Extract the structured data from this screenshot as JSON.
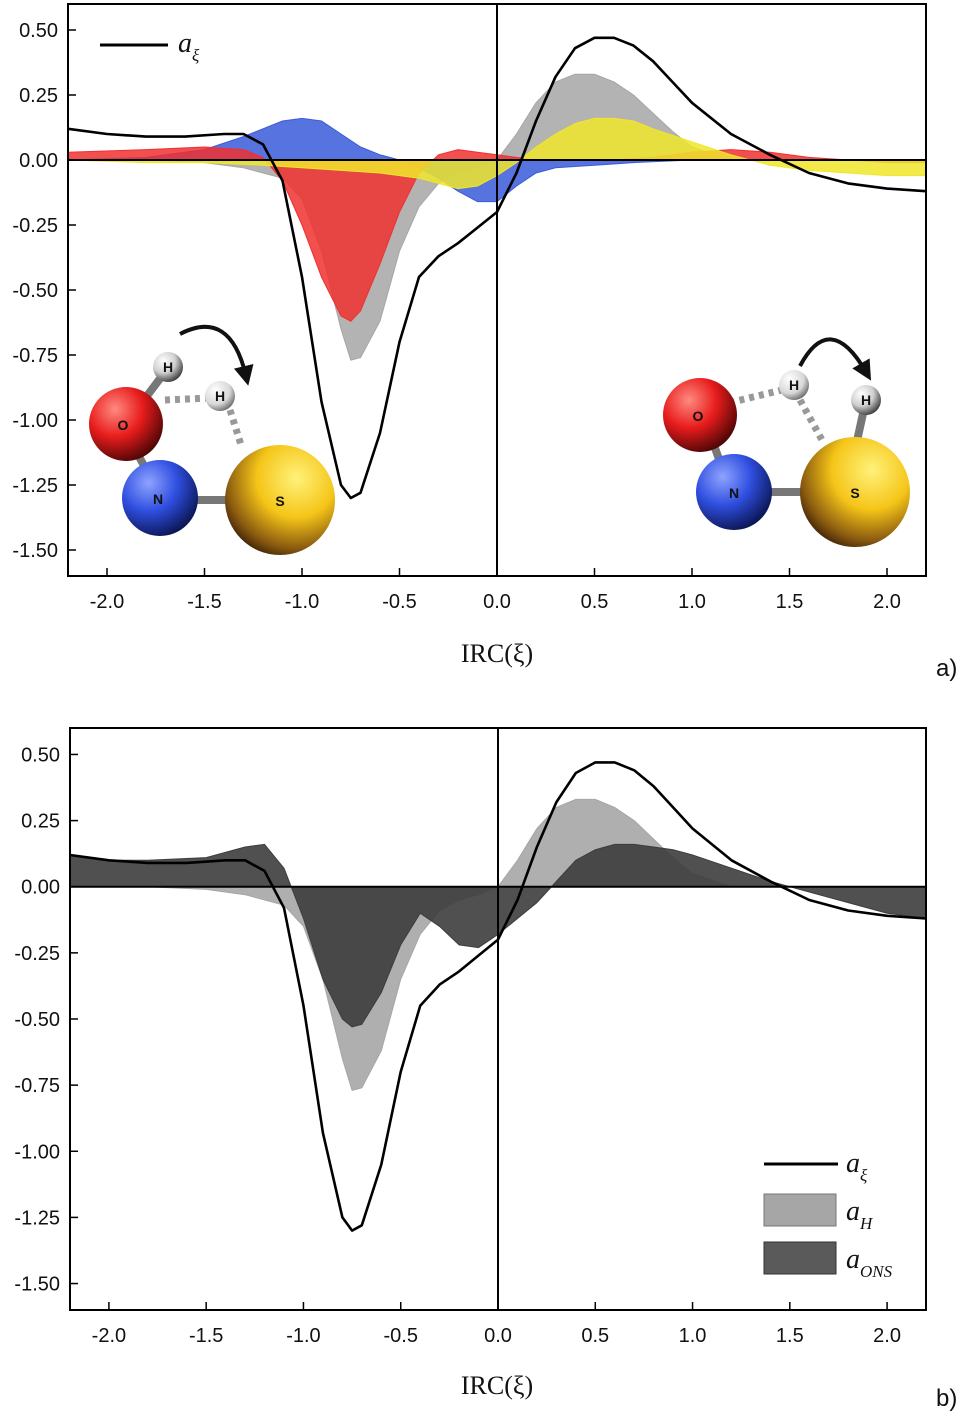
{
  "chart_data": [
    {
      "type": "area",
      "panel_label": "a)",
      "xlabel": "IRC(ξ)",
      "ylabel": "",
      "xlim": [
        -2.2,
        2.2
      ],
      "ylim": [
        -1.6,
        0.6
      ],
      "xticks": [
        "-2.0",
        "-1.5",
        "-1.0",
        "-0.5",
        "0.0",
        "0.5",
        "1.0",
        "1.5",
        "2.0"
      ],
      "yticks": [
        "0.50",
        "0.25",
        "0.00",
        "-0.25",
        "-0.50",
        "-0.75",
        "-1.00",
        "-1.25",
        "-1.50"
      ],
      "grid": false,
      "legend_position": "top-left",
      "series": [
        {
          "name": "a",
          "name_sub": "ξ",
          "kind": "line",
          "color": "#000000",
          "x": [
            -2.2,
            -2.0,
            -1.8,
            -1.6,
            -1.4,
            -1.3,
            -1.2,
            -1.1,
            -1.0,
            -0.9,
            -0.8,
            -0.75,
            -0.7,
            -0.6,
            -0.5,
            -0.4,
            -0.3,
            -0.2,
            -0.1,
            0.0,
            0.1,
            0.2,
            0.3,
            0.4,
            0.5,
            0.6,
            0.7,
            0.8,
            0.9,
            1.0,
            1.2,
            1.4,
            1.6,
            1.8,
            2.0,
            2.2
          ],
          "y": [
            0.12,
            0.1,
            0.09,
            0.09,
            0.1,
            0.1,
            0.06,
            -0.08,
            -0.45,
            -0.93,
            -1.25,
            -1.3,
            -1.28,
            -1.05,
            -0.7,
            -0.45,
            -0.37,
            -0.32,
            -0.26,
            -0.2,
            -0.05,
            0.15,
            0.32,
            0.43,
            0.47,
            0.47,
            0.44,
            0.38,
            0.3,
            0.22,
            0.1,
            0.02,
            -0.05,
            -0.09,
            -0.11,
            -0.12
          ]
        },
        {
          "name": "",
          "kind": "area",
          "color": "#a6a6a6",
          "x": [
            -2.2,
            -1.8,
            -1.5,
            -1.3,
            -1.1,
            -1.0,
            -0.9,
            -0.8,
            -0.75,
            -0.7,
            -0.6,
            -0.5,
            -0.4,
            -0.3,
            -0.2,
            -0.1,
            0.0,
            0.1,
            0.2,
            0.3,
            0.4,
            0.5,
            0.6,
            0.7,
            0.8,
            0.9,
            1.0,
            1.2,
            1.4,
            1.6,
            1.8,
            2.0,
            2.2
          ],
          "y": [
            0.0,
            0.0,
            -0.01,
            -0.03,
            -0.07,
            -0.15,
            -0.35,
            -0.65,
            -0.77,
            -0.76,
            -0.62,
            -0.35,
            -0.18,
            -0.09,
            -0.05,
            -0.03,
            0.0,
            0.1,
            0.22,
            0.3,
            0.33,
            0.33,
            0.3,
            0.25,
            0.18,
            0.11,
            0.05,
            0.0,
            0.0,
            0.0,
            0.0,
            0.0,
            0.0
          ]
        },
        {
          "name": "",
          "kind": "area",
          "color": "#3a5bd9",
          "x": [
            -2.2,
            -1.8,
            -1.5,
            -1.3,
            -1.2,
            -1.1,
            -1.0,
            -0.9,
            -0.8,
            -0.7,
            -0.6,
            -0.5,
            -0.4,
            -0.3,
            -0.2,
            -0.1,
            0.0,
            0.1,
            0.2,
            0.3,
            0.5,
            0.7,
            1.0,
            1.3,
            1.6,
            2.2
          ],
          "y": [
            0.0,
            0.01,
            0.04,
            0.09,
            0.12,
            0.15,
            0.16,
            0.15,
            0.1,
            0.05,
            0.02,
            0.0,
            -0.03,
            -0.07,
            -0.12,
            -0.16,
            -0.16,
            -0.1,
            -0.05,
            -0.03,
            -0.02,
            -0.01,
            0.0,
            0.0,
            0.0,
            0.0
          ]
        },
        {
          "name": "",
          "kind": "area",
          "color": "#f03030",
          "x": [
            -2.2,
            -1.8,
            -1.5,
            -1.3,
            -1.2,
            -1.1,
            -1.0,
            -0.9,
            -0.8,
            -0.75,
            -0.7,
            -0.6,
            -0.5,
            -0.4,
            -0.3,
            -0.2,
            -0.1,
            0.0,
            0.1,
            0.2,
            0.4,
            0.6,
            0.8,
            1.0,
            1.2,
            1.4,
            1.6,
            1.8,
            2.0,
            2.2
          ],
          "y": [
            0.03,
            0.04,
            0.05,
            0.04,
            0.01,
            -0.08,
            -0.25,
            -0.45,
            -0.6,
            -0.62,
            -0.58,
            -0.4,
            -0.2,
            -0.05,
            0.02,
            0.04,
            0.03,
            0.02,
            0.01,
            0.0,
            0.0,
            0.0,
            0.01,
            0.03,
            0.04,
            0.03,
            0.01,
            0.0,
            -0.01,
            -0.01
          ]
        },
        {
          "name": "",
          "kind": "area",
          "color": "#f0e62a",
          "x": [
            -2.2,
            -1.8,
            -1.5,
            -1.2,
            -1.0,
            -0.8,
            -0.6,
            -0.4,
            -0.3,
            -0.2,
            -0.1,
            0.0,
            0.1,
            0.2,
            0.3,
            0.4,
            0.5,
            0.6,
            0.7,
            0.8,
            1.0,
            1.2,
            1.4,
            1.6,
            1.8,
            2.0,
            2.2
          ],
          "y": [
            0.0,
            -0.01,
            -0.01,
            -0.02,
            -0.03,
            -0.04,
            -0.05,
            -0.07,
            -0.09,
            -0.11,
            -0.1,
            -0.06,
            -0.01,
            0.05,
            0.1,
            0.14,
            0.16,
            0.16,
            0.15,
            0.12,
            0.07,
            0.02,
            -0.02,
            -0.04,
            -0.05,
            -0.06,
            -0.06
          ]
        }
      ]
    },
    {
      "type": "area",
      "panel_label": "b)",
      "xlabel": "IRC(ξ)",
      "ylabel": "",
      "xlim": [
        -2.2,
        2.2
      ],
      "ylim": [
        -1.6,
        0.6
      ],
      "xticks": [
        "-2.0",
        "-1.5",
        "-1.0",
        "-0.5",
        "0.0",
        "0.5",
        "1.0",
        "1.5",
        "2.0"
      ],
      "yticks": [
        "0.50",
        "0.25",
        "0.00",
        "-0.25",
        "-0.50",
        "-0.75",
        "-1.00",
        "-1.25",
        "-1.50"
      ],
      "grid": false,
      "legend_position": "bottom-right",
      "series": [
        {
          "name": "a",
          "name_sub": "ξ",
          "kind": "line",
          "color": "#000000",
          "x": [
            -2.2,
            -2.0,
            -1.8,
            -1.6,
            -1.4,
            -1.3,
            -1.2,
            -1.1,
            -1.0,
            -0.9,
            -0.8,
            -0.75,
            -0.7,
            -0.6,
            -0.5,
            -0.4,
            -0.3,
            -0.2,
            -0.1,
            0.0,
            0.1,
            0.2,
            0.3,
            0.4,
            0.5,
            0.6,
            0.7,
            0.8,
            0.9,
            1.0,
            1.2,
            1.4,
            1.6,
            1.8,
            2.0,
            2.2
          ],
          "y": [
            0.12,
            0.1,
            0.09,
            0.09,
            0.1,
            0.1,
            0.06,
            -0.08,
            -0.45,
            -0.93,
            -1.25,
            -1.3,
            -1.28,
            -1.05,
            -0.7,
            -0.45,
            -0.37,
            -0.32,
            -0.26,
            -0.2,
            -0.05,
            0.15,
            0.32,
            0.43,
            0.47,
            0.47,
            0.44,
            0.38,
            0.3,
            0.22,
            0.1,
            0.02,
            -0.05,
            -0.09,
            -0.11,
            -0.12
          ]
        },
        {
          "name": "a",
          "name_sub": "H",
          "kind": "area",
          "color": "#a6a6a6",
          "x": [
            -2.2,
            -1.8,
            -1.5,
            -1.3,
            -1.1,
            -1.0,
            -0.9,
            -0.8,
            -0.75,
            -0.7,
            -0.6,
            -0.5,
            -0.4,
            -0.3,
            -0.2,
            -0.1,
            0.0,
            0.1,
            0.2,
            0.3,
            0.4,
            0.5,
            0.6,
            0.7,
            0.8,
            0.9,
            1.0,
            1.2,
            1.4,
            1.6,
            1.8,
            2.0,
            2.2
          ],
          "y": [
            0.0,
            0.0,
            -0.01,
            -0.03,
            -0.07,
            -0.15,
            -0.35,
            -0.65,
            -0.77,
            -0.76,
            -0.62,
            -0.35,
            -0.18,
            -0.09,
            -0.05,
            -0.03,
            0.0,
            0.1,
            0.22,
            0.3,
            0.33,
            0.33,
            0.3,
            0.25,
            0.18,
            0.11,
            0.05,
            0.0,
            0.0,
            0.0,
            0.0,
            0.0,
            0.0
          ]
        },
        {
          "name": "a",
          "name_sub": "ONS",
          "kind": "area",
          "color": "#3d3d3d",
          "x": [
            -2.2,
            -2.0,
            -1.8,
            -1.5,
            -1.3,
            -1.2,
            -1.1,
            -1.0,
            -0.9,
            -0.8,
            -0.75,
            -0.7,
            -0.6,
            -0.5,
            -0.4,
            -0.3,
            -0.2,
            -0.1,
            0.0,
            0.1,
            0.2,
            0.3,
            0.4,
            0.5,
            0.6,
            0.7,
            0.8,
            0.9,
            1.0,
            1.2,
            1.4,
            1.5,
            1.6,
            1.8,
            2.0,
            2.2
          ],
          "y": [
            0.12,
            0.1,
            0.1,
            0.11,
            0.15,
            0.16,
            0.07,
            -0.12,
            -0.35,
            -0.5,
            -0.53,
            -0.52,
            -0.4,
            -0.22,
            -0.1,
            -0.15,
            -0.22,
            -0.23,
            -0.18,
            -0.12,
            -0.06,
            0.02,
            0.1,
            0.14,
            0.16,
            0.16,
            0.15,
            0.14,
            0.12,
            0.07,
            0.02,
            0.0,
            -0.02,
            -0.06,
            -0.1,
            -0.12
          ]
        }
      ]
    }
  ],
  "molecule_left": {
    "atoms": [
      {
        "symbol": "H",
        "color": "#f2f2f2"
      },
      {
        "symbol": "H",
        "color": "#f2f2f2"
      },
      {
        "symbol": "O",
        "color": "#e81c1c"
      },
      {
        "symbol": "N",
        "color": "#2f4fe0"
      },
      {
        "symbol": "S",
        "color": "#f5c518"
      }
    ]
  },
  "molecule_right": {
    "atoms": [
      {
        "symbol": "H",
        "color": "#f2f2f2"
      },
      {
        "symbol": "H",
        "color": "#f2f2f2"
      },
      {
        "symbol": "O",
        "color": "#e81c1c"
      },
      {
        "symbol": "N",
        "color": "#2f4fe0"
      },
      {
        "symbol": "S",
        "color": "#f5c518"
      }
    ]
  }
}
